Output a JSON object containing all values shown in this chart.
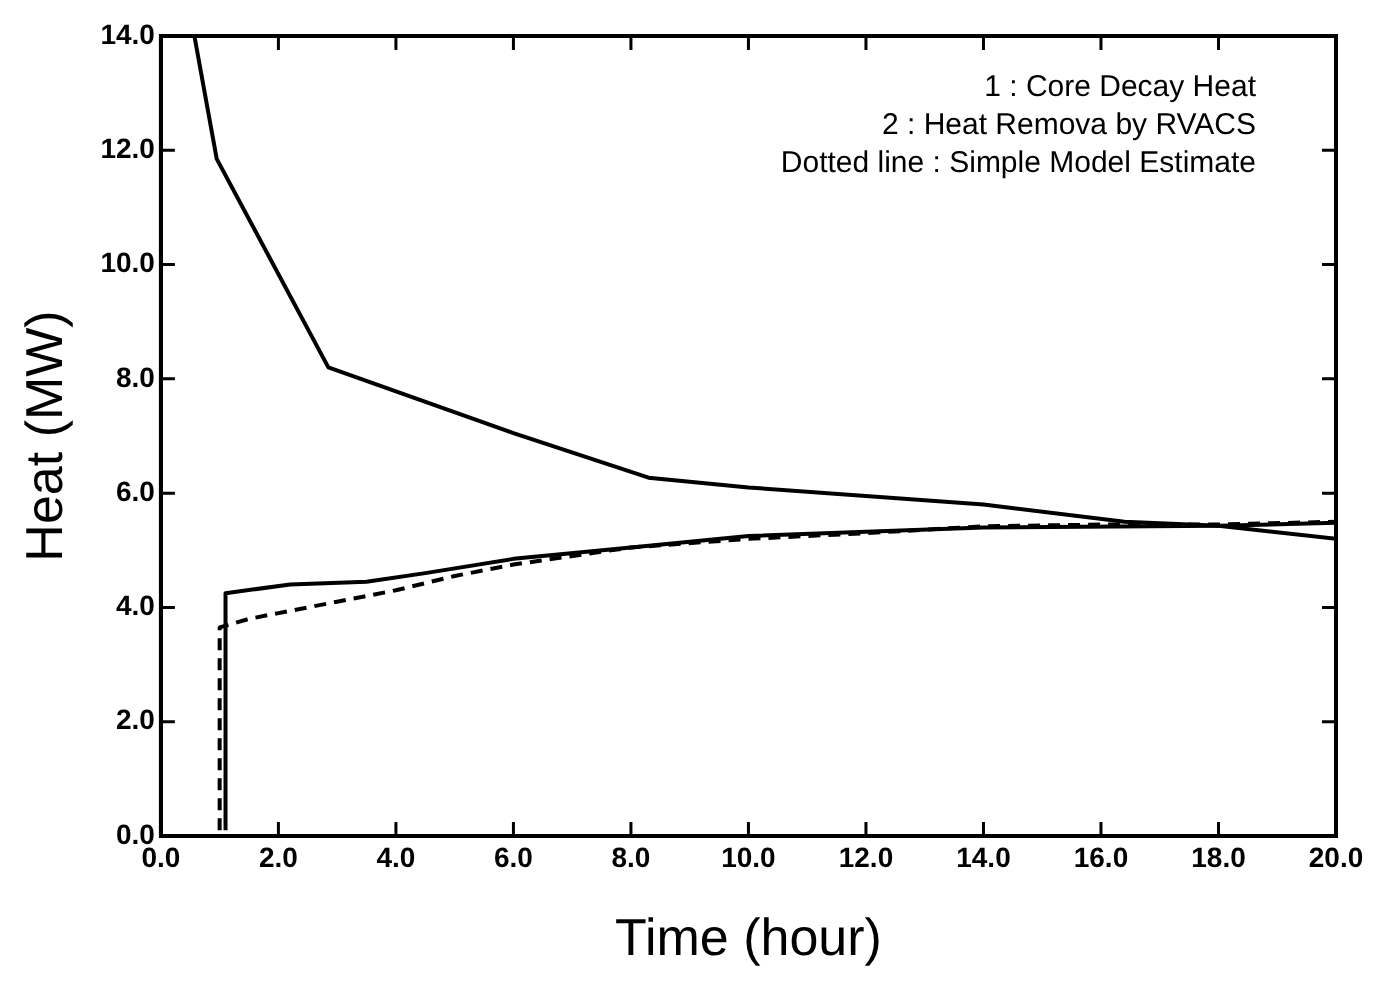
{
  "chart_data": {
    "type": "line",
    "xlabel": "Time (hour)",
    "ylabel": "Heat (MW)",
    "xlim": [
      0,
      20
    ],
    "ylim": [
      0,
      14
    ],
    "xticks": [
      {
        "value": 0,
        "label": "0.0"
      },
      {
        "value": 2,
        "label": "2.0"
      },
      {
        "value": 4,
        "label": "4.0"
      },
      {
        "value": 6,
        "label": "6.0"
      },
      {
        "value": 8,
        "label": "8.0"
      },
      {
        "value": 10,
        "label": "10.0"
      },
      {
        "value": 12,
        "label": "12.0"
      },
      {
        "value": 14,
        "label": "14.0"
      },
      {
        "value": 16,
        "label": "16.0"
      },
      {
        "value": 18,
        "label": "18.0"
      },
      {
        "value": 20,
        "label": "20.0"
      }
    ],
    "yticks": [
      {
        "value": 0,
        "label": "0.0"
      },
      {
        "value": 2,
        "label": "2.0"
      },
      {
        "value": 4,
        "label": "4.0"
      },
      {
        "value": 6,
        "label": "6.0"
      },
      {
        "value": 8,
        "label": "8.0"
      },
      {
        "value": 10,
        "label": "10.0"
      },
      {
        "value": 12,
        "label": "12.0"
      },
      {
        "value": 14,
        "label": "14.0"
      }
    ],
    "grid": false,
    "legend": false,
    "marker": "none",
    "annotations": [
      "1 : Core Decay Heat",
      "2 : Heat Remova by RVACS",
      "Dotted line : Simple Model Estimate"
    ],
    "series": [
      {
        "color": "#000000",
        "line_style": "solid",
        "x": [
          0.57,
          0.95,
          2.85,
          6.0,
          8.3,
          10,
          14,
          16.4,
          18,
          20
        ],
        "values": [
          14,
          11.85,
          8.2,
          7.05,
          6.27,
          6.1,
          5.8,
          5.5,
          5.43,
          5.2
        ]
      },
      {
        "color": "#000000",
        "line_style": "solid",
        "x": [
          1.1,
          1.1,
          2.2,
          3.5,
          4.5,
          6,
          8,
          10,
          14,
          18,
          20
        ],
        "values": [
          0.1,
          4.25,
          4.4,
          4.45,
          4.6,
          4.85,
          5.05,
          5.25,
          5.4,
          5.43,
          5.48
        ]
      },
      {
        "color": "#000000",
        "line_style": "dashed",
        "x": [
          1.0,
          1.0,
          1.5,
          2,
          3,
          4,
          5,
          6,
          8,
          10,
          12,
          14,
          16,
          18,
          20
        ],
        "values": [
          0.1,
          3.65,
          3.8,
          3.9,
          4.1,
          4.3,
          4.55,
          4.75,
          5.05,
          5.2,
          5.3,
          5.42,
          5.45,
          5.45,
          5.5
        ]
      }
    ]
  }
}
